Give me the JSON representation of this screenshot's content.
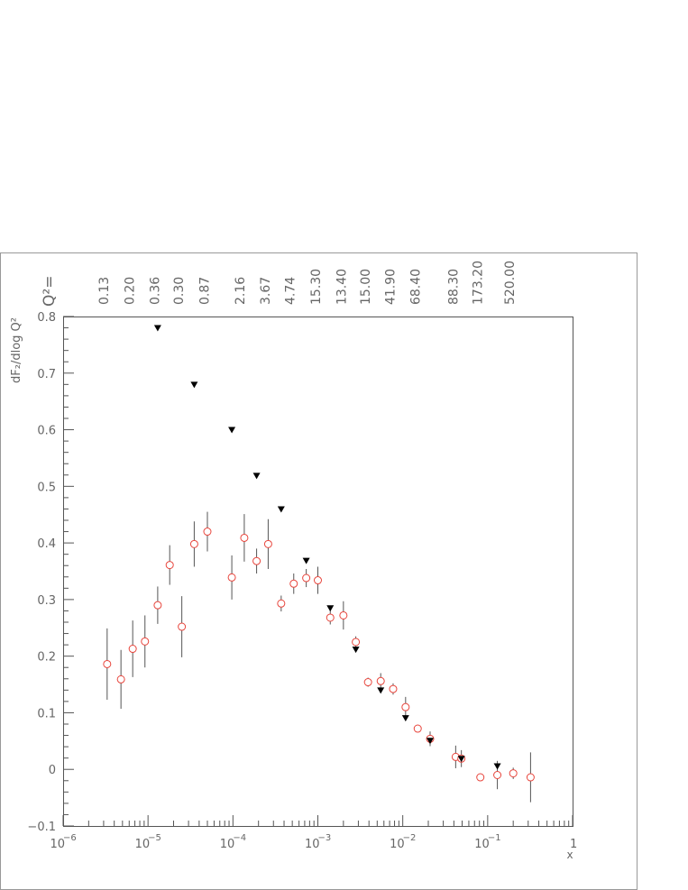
{
  "chart_data": {
    "type": "scatter",
    "y_label": "dF₂/dlog Q²",
    "x_label": "x",
    "q2_title": "Q²=",
    "q2_labels": [
      {
        "x": 3e-06,
        "label": "0.13"
      },
      {
        "x": 6e-06,
        "label": "0.20"
      },
      {
        "x": 1.2e-05,
        "label": "0.36"
      },
      {
        "x": 2.3e-05,
        "label": "0.30"
      },
      {
        "x": 4.6e-05,
        "label": "0.87"
      },
      {
        "x": 0.00012,
        "label": "2.16"
      },
      {
        "x": 0.00024,
        "label": "3.67"
      },
      {
        "x": 0.00047,
        "label": "4.74"
      },
      {
        "x": 0.00094,
        "label": "15.30"
      },
      {
        "x": 0.0019,
        "label": "13.40"
      },
      {
        "x": 0.0036,
        "label": "15.00"
      },
      {
        "x": 0.0071,
        "label": "41.90"
      },
      {
        "x": 0.014,
        "label": "68.40"
      },
      {
        "x": 0.039,
        "label": "88.30"
      },
      {
        "x": 0.076,
        "label": "173.20"
      },
      {
        "x": 0.18,
        "label": "520.00"
      }
    ],
    "log_x": true,
    "xlim": [
      1e-06,
      1
    ],
    "xticks": [
      {
        "value": 1e-06,
        "label": "10",
        "exponent": "−6"
      },
      {
        "value": 1e-05,
        "label": "10",
        "exponent": "−5"
      },
      {
        "value": 0.0001,
        "label": "10",
        "exponent": "−4"
      },
      {
        "value": 0.001,
        "label": "10",
        "exponent": "−3"
      },
      {
        "value": 0.01,
        "label": "10",
        "exponent": "−2"
      },
      {
        "value": 0.1,
        "label": "10",
        "exponent": "−1"
      },
      1
    ],
    "ylim": [
      -0.1,
      0.8
    ],
    "yticks": [
      {
        "value": -0.1,
        "label": "−0.1"
      },
      0,
      0.1,
      0.2,
      0.3,
      0.4,
      0.5,
      0.6,
      0.7,
      0.8
    ],
    "series": [
      {
        "marker": "circle",
        "color": "#e8453c",
        "x": [
          3.3e-06,
          4.8e-06,
          6.6e-06,
          9.2e-06,
          1.3e-05,
          1.8e-05,
          2.5e-05,
          3.5e-05,
          5e-05,
          9.7e-05,
          0.000136,
          0.00019,
          0.00026,
          0.00037,
          0.00052,
          0.00073,
          0.001,
          0.0014,
          0.002,
          0.0028,
          0.0039,
          0.0055,
          0.0077,
          0.0108,
          0.015,
          0.021,
          0.042,
          0.049,
          0.082,
          0.13,
          0.2,
          0.32
        ],
        "values": [
          0.186,
          0.159,
          0.213,
          0.226,
          0.29,
          0.361,
          0.252,
          0.398,
          0.42,
          0.339,
          0.409,
          0.368,
          0.398,
          0.293,
          0.328,
          0.338,
          0.334,
          0.268,
          0.272,
          0.225,
          0.154,
          0.156,
          0.142,
          0.11,
          0.072,
          0.054,
          0.022,
          0.019,
          -0.014,
          -0.01,
          -0.007,
          -0.014
        ],
        "errors": [
          0.063,
          0.052,
          0.05,
          0.046,
          0.033,
          0.035,
          0.054,
          0.04,
          0.035,
          0.039,
          0.042,
          0.022,
          0.044,
          0.014,
          0.018,
          0.016,
          0.024,
          0.012,
          0.025,
          0.01,
          0.008,
          0.014,
          0.01,
          0.018,
          0.005,
          0.013,
          0.02,
          0.015,
          0.006,
          0.025,
          0.01,
          0.044
        ]
      },
      {
        "marker": "triangle",
        "color": "#000000",
        "x": [
          1.3e-05,
          3.5e-05,
          9.7e-05,
          0.00019,
          0.00037,
          0.00073,
          0.0014,
          0.0028,
          0.0055,
          0.0108,
          0.021,
          0.049,
          0.13
        ],
        "values": [
          0.78,
          0.68,
          0.6,
          0.519,
          0.46,
          0.369,
          0.285,
          0.212,
          0.14,
          0.091,
          0.051,
          0.019,
          0.006
        ]
      }
    ]
  }
}
